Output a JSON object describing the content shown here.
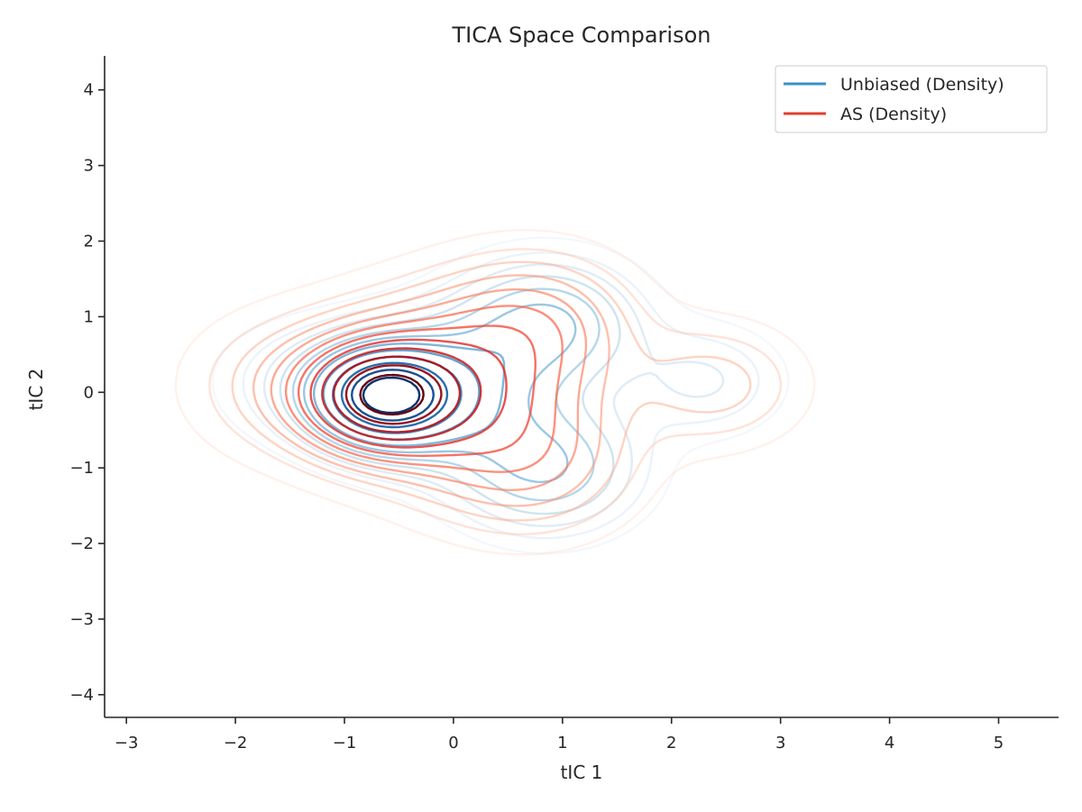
{
  "chart_data": {
    "type": "contour",
    "title": "TICA Space Comparison",
    "xlabel": "tIC 1",
    "ylabel": "tIC 2",
    "xlim": [
      -3.2,
      5.55
    ],
    "ylim": [
      -4.3,
      4.45
    ],
    "xticks": [
      -3,
      -2,
      -1,
      0,
      1,
      2,
      3,
      4,
      5
    ],
    "yticks": [
      -4,
      -3,
      -2,
      -1,
      0,
      1,
      2,
      3,
      4
    ],
    "xtick_labels": [
      "−3",
      "−2",
      "−1",
      "0",
      "1",
      "2",
      "3",
      "4",
      "5"
    ],
    "ytick_labels": [
      "−4",
      "−3",
      "−2",
      "−1",
      "0",
      "1",
      "2",
      "3",
      "4"
    ],
    "grid": false,
    "legend_position": "top-right",
    "series": [
      {
        "name": "Unbiased (Density)",
        "legend_color": "#3a8fc9",
        "colormap": "Blues",
        "peak": [
          -0.65,
          -0.05
        ],
        "levels": 12,
        "outer_extent": {
          "x": [
            -2.25,
            3.1
          ],
          "y": [
            -2.7,
            2.9
          ]
        }
      },
      {
        "name": "AS (Density)",
        "legend_color": "#e0402e",
        "colormap": "Reds",
        "peak": [
          -0.65,
          -0.05
        ],
        "levels": 12,
        "outer_extent": {
          "x": [
            -2.6,
            3.4
          ],
          "y": [
            -2.9,
            2.95
          ]
        }
      }
    ]
  }
}
